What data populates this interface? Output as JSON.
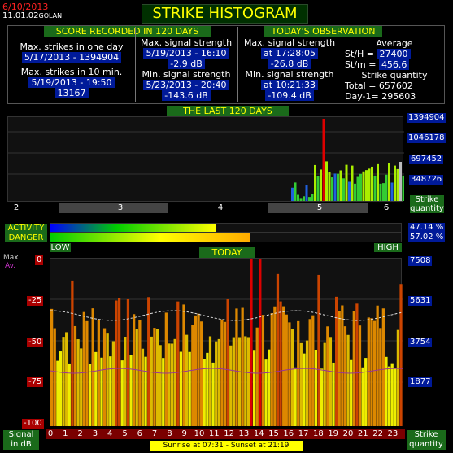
{
  "header": {
    "date": "6/10/2013",
    "time": "11.01.02",
    "location": "GOLAN",
    "title": "STRIKE HISTOGRAM"
  },
  "score_header": "SCORE RECORDED IN 120 DAYS",
  "today_header": "TODAY'S OBSERVATION",
  "score": {
    "max_day_label": "Max. strikes in one day",
    "max_day_value": "5/17/2013 - 1394904",
    "max10_label": "Max. strikes in 10 min.",
    "max10_date": "5/19/2013 - 19:50",
    "max10_value": "13167",
    "maxsig_label": "Max. signal strength",
    "maxsig_date": "5/19/2013 - 16:10",
    "maxsig_value": "-2.9 dB",
    "minsig_label": "Min. signal strength",
    "minsig_date": "5/23/2013 - 20:40",
    "minsig_value": "-143.6 dB"
  },
  "today": {
    "maxsig_label": "Max. signal strength",
    "maxsig_time": "at 17:28:05",
    "maxsig_value": "-26.8 dB",
    "minsig_label": "Min. signal strength",
    "minsig_time": "at 10:21:33",
    "minsig_value": "-109.4 dB",
    "avg_label": "Average",
    "sth_label": "St/H =",
    "sth_value": "27400",
    "stm_label": "St/m =",
    "stm_value": "456.6",
    "qty_label": "Strike quantity",
    "total_label": "Total",
    "total_value": "= 657602",
    "day1_label": "Day-1=",
    "day1_value": "295603"
  },
  "last120": {
    "title": "THE LAST 120 DAYS",
    "y_labels": [
      "1394904",
      "1046178",
      "697452",
      "348726"
    ],
    "month_labels": [
      "2",
      "3",
      "4",
      "5",
      "6"
    ],
    "qty_label_1": "Strike",
    "qty_label_2": "quantity"
  },
  "meters": {
    "activity_label": "ACTIVITY",
    "danger_label": "DANGER",
    "activity_value": "47.14 %",
    "danger_value": "57.02 %",
    "activity_fraction": 0.4714,
    "danger_fraction": 0.5702,
    "low_label": "LOW",
    "high_label": "HIGH"
  },
  "today_chart": {
    "title": "TODAY",
    "max_label": "Max",
    "avg_label": "Av.",
    "y_left": [
      "0",
      "-25",
      "-50",
      "-75",
      "-100"
    ],
    "y_right": [
      "7508",
      "5631",
      "3754",
      "1877"
    ],
    "x_hours": [
      "0",
      "1",
      "2",
      "3",
      "4",
      "5",
      "6",
      "7",
      "8",
      "9",
      "10",
      "11",
      "12",
      "13",
      "14",
      "15",
      "16",
      "17",
      "18",
      "19",
      "20",
      "21",
      "22",
      "23"
    ],
    "signal_label_1": "Signal",
    "signal_label_2": "in dB",
    "qty_label_1": "Strike",
    "qty_label_2": "quantity"
  },
  "sun": "Sunrise at 07:31  -  Sunset at 21:19"
}
